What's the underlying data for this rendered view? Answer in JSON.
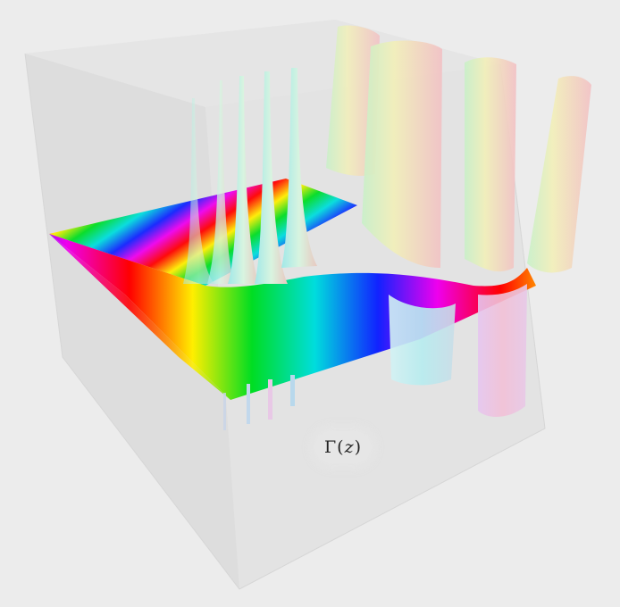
{
  "plot": {
    "function_label": "Γ",
    "argument": "z",
    "open_paren": "(",
    "close_paren": ")"
  },
  "colors": {
    "background": "#ececec",
    "box_face": "#dedede",
    "pole_tube_hues": [
      "cyan",
      "pink",
      "light-green",
      "yellow"
    ]
  }
}
